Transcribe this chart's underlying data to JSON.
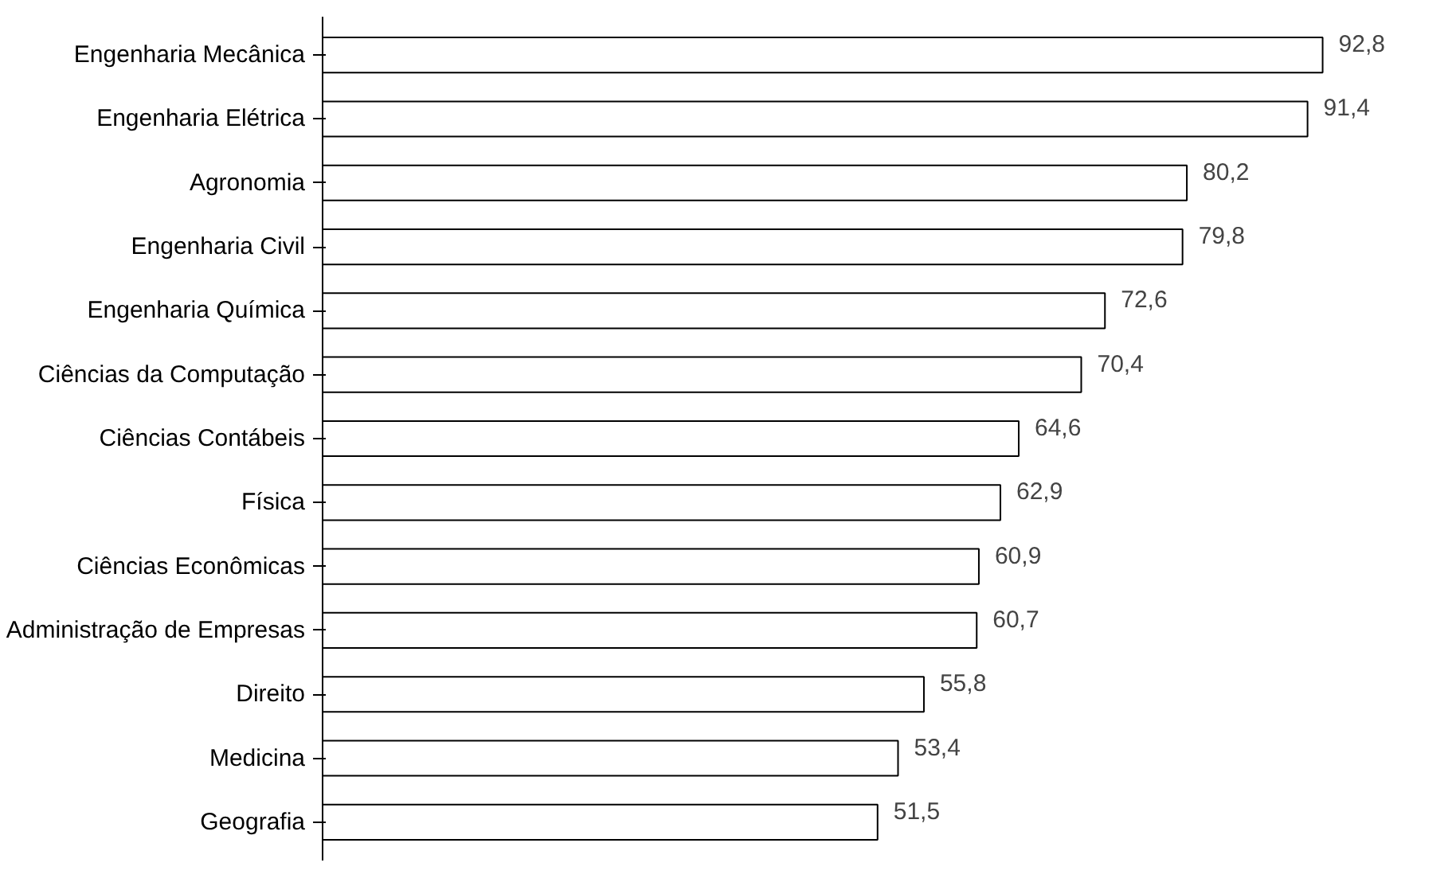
{
  "chart_data": {
    "type": "bar",
    "orientation": "horizontal",
    "categories": [
      "Engenharia Mecânica",
      "Engenharia Elétrica",
      "Agronomia",
      "Engenharia Civil",
      "Engenharia Química",
      "Ciências da Computação",
      "Ciências Contábeis",
      "Física",
      "Ciências Econômicas",
      "Administração de Empresas",
      "Direito",
      "Medicina",
      "Geografia"
    ],
    "values": [
      92.8,
      91.4,
      80.2,
      79.8,
      72.6,
      70.4,
      64.6,
      62.9,
      60.9,
      60.7,
      55.8,
      53.4,
      51.5
    ],
    "value_labels": [
      "92,8",
      "91,4",
      "80,2",
      "79,8",
      "72,6",
      "70,4",
      "64,6",
      "62,9",
      "60,9",
      "60,7",
      "55,8",
      "53,4",
      "51,5"
    ],
    "color": "#ffffff",
    "tick_labels": "y",
    "grid": false
  }
}
